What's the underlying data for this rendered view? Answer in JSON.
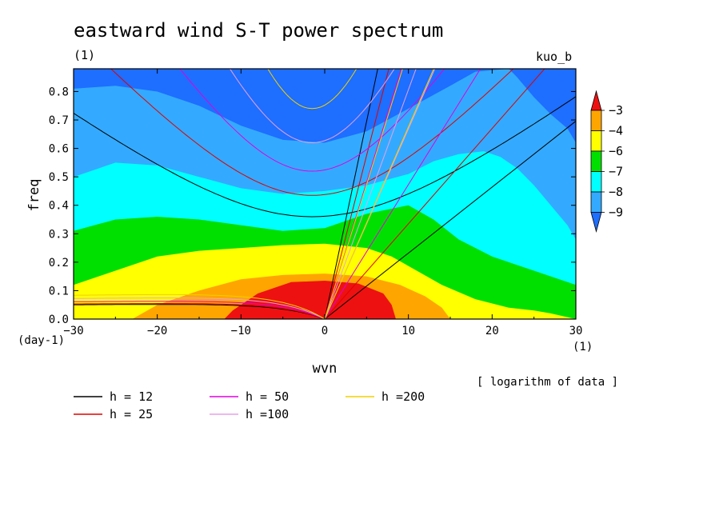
{
  "header": {
    "title": "eastward wind S-T power spectrum",
    "unit_left": "(1)",
    "model_name": "kuo_b"
  },
  "note": "[ logarithm of data ]",
  "chart_data": {
    "type": "heatmap",
    "title": "eastward wind S-T power spectrum",
    "xlabel": "wvn",
    "ylabel": "freq",
    "x_unit": "(1)",
    "y_unit": "(day-1)",
    "xlim": [
      -30,
      30
    ],
    "ylim": [
      0,
      0.88
    ],
    "x_ticks": [
      -30,
      -20,
      -10,
      0,
      10,
      20,
      30
    ],
    "x_tick_labels": [
      "−30",
      "−20",
      "−10",
      "0",
      "10",
      "20",
      "30"
    ],
    "y_ticks": [
      0.0,
      0.1,
      0.2,
      0.3,
      0.4,
      0.5,
      0.6,
      0.7,
      0.8
    ],
    "y_tick_labels": [
      "0.0",
      "0.1",
      "0.2",
      "0.3",
      "0.4",
      "0.5",
      "0.6",
      "0.7",
      "0.8"
    ],
    "colorbar": {
      "labels": [
        "−3",
        "−4",
        "−6",
        "−7",
        "−8",
        "−9"
      ],
      "colors": [
        "#ee1111",
        "#ffa500",
        "#ffff00",
        "#00e000",
        "#00ffff",
        "#33aaff",
        "#1e6eff"
      ]
    },
    "fill_levels": [
      {
        "name": "le-9",
        "color": "#1e6eff"
      },
      {
        "name": "-9 to -8",
        "color": "#33aaff",
        "boundary": [
          [
            -30,
            0.81
          ],
          [
            -25,
            0.82
          ],
          [
            -20,
            0.8
          ],
          [
            -15,
            0.75
          ],
          [
            -10,
            0.68
          ],
          [
            -5,
            0.63
          ],
          [
            0,
            0.62
          ],
          [
            5,
            0.66
          ],
          [
            10,
            0.74
          ],
          [
            15,
            0.82
          ],
          [
            18,
            0.87
          ],
          [
            22,
            0.88
          ],
          [
            23,
            0.85
          ],
          [
            25,
            0.78
          ],
          [
            27,
            0.72
          ],
          [
            29,
            0.67
          ],
          [
            30,
            0.62
          ]
        ]
      },
      {
        "name": "-8 to -7",
        "color": "#00ffff",
        "boundary": [
          [
            -30,
            0.5
          ],
          [
            -25,
            0.55
          ],
          [
            -20,
            0.54
          ],
          [
            -15,
            0.5
          ],
          [
            -10,
            0.46
          ],
          [
            -5,
            0.44
          ],
          [
            0,
            0.45
          ],
          [
            5,
            0.47
          ],
          [
            10,
            0.51
          ],
          [
            13,
            0.555
          ],
          [
            16,
            0.58
          ],
          [
            19,
            0.59
          ],
          [
            21,
            0.57
          ],
          [
            23,
            0.53
          ],
          [
            25,
            0.47
          ],
          [
            27,
            0.4
          ],
          [
            29,
            0.33
          ],
          [
            30,
            0.28
          ]
        ]
      },
      {
        "name": "-7 to -6",
        "color": "#00e000",
        "boundary": [
          [
            -30,
            0.31
          ],
          [
            -25,
            0.35
          ],
          [
            -20,
            0.36
          ],
          [
            -15,
            0.35
          ],
          [
            -10,
            0.33
          ],
          [
            -5,
            0.31
          ],
          [
            0,
            0.32
          ],
          [
            5,
            0.37
          ],
          [
            10,
            0.4
          ],
          [
            13,
            0.35
          ],
          [
            16,
            0.28
          ],
          [
            20,
            0.22
          ],
          [
            25,
            0.17
          ],
          [
            30,
            0.12
          ]
        ]
      },
      {
        "name": "-6 to -4",
        "color": "#ffff00",
        "boundary": [
          [
            -30,
            0.12
          ],
          [
            -25,
            0.17
          ],
          [
            -20,
            0.22
          ],
          [
            -15,
            0.24
          ],
          [
            -10,
            0.25
          ],
          [
            -5,
            0.26
          ],
          [
            0,
            0.265
          ],
          [
            5,
            0.25
          ],
          [
            8,
            0.22
          ],
          [
            11,
            0.17
          ],
          [
            14,
            0.12
          ],
          [
            18,
            0.07
          ],
          [
            22,
            0.04
          ],
          [
            25,
            0.03
          ],
          [
            27,
            0.02
          ],
          [
            30,
            0
          ]
        ]
      },
      {
        "name": "-4 to -3",
        "color": "#ffa500",
        "boundary": [
          [
            -30,
            0
          ],
          [
            -23,
            0
          ],
          [
            -20,
            0.05
          ],
          [
            -15,
            0.1
          ],
          [
            -10,
            0.14
          ],
          [
            -5,
            0.155
          ],
          [
            0,
            0.16
          ],
          [
            5,
            0.15
          ],
          [
            9,
            0.12
          ],
          [
            12,
            0.08
          ],
          [
            14,
            0.04
          ],
          [
            15,
            0
          ]
        ]
      },
      {
        "name": "gt-3",
        "color": "#ee1111",
        "boundary": [
          [
            -30,
            0
          ],
          [
            -12,
            0
          ],
          [
            -11,
            0.03
          ],
          [
            -8,
            0.09
          ],
          [
            -4,
            0.13
          ],
          [
            0,
            0.135
          ],
          [
            4,
            0.125
          ],
          [
            7,
            0.09
          ],
          [
            8,
            0.05
          ],
          [
            8.5,
            0
          ]
        ]
      }
    ],
    "dispersion_lines": [
      {
        "h": 12,
        "label": "h = 12",
        "color": "#000000",
        "n0_freq": 0.36,
        "kelvin_slope": 0.0232,
        "mrg_high": 0.36,
        "mrg_low_asym": 0.066
      },
      {
        "h": 25,
        "label": "h = 25",
        "color": "#e00000",
        "n0_freq": 0.435,
        "kelvin_slope": 0.0335,
        "mrg_high": 0.435,
        "mrg_low_asym": 0.07
      },
      {
        "h": 50,
        "label": "h = 50",
        "color": "#e000e0",
        "n0_freq": 0.52,
        "kelvin_slope": 0.0473,
        "mrg_high": 0.52,
        "mrg_low_asym": 0.08
      },
      {
        "h": 100,
        "label": "h =100",
        "color": "#e8a0e8",
        "n0_freq": 0.62,
        "kelvin_slope": 0.0669,
        "mrg_high": 0.62,
        "mrg_low_asym": 0.095
      },
      {
        "h": 200,
        "label": "h =200",
        "color": "#f0d000",
        "n0_freq": 0.74,
        "kelvin_slope": 0.0946,
        "mrg_high": 0.74,
        "mrg_low_asym": 0.11
      }
    ]
  }
}
